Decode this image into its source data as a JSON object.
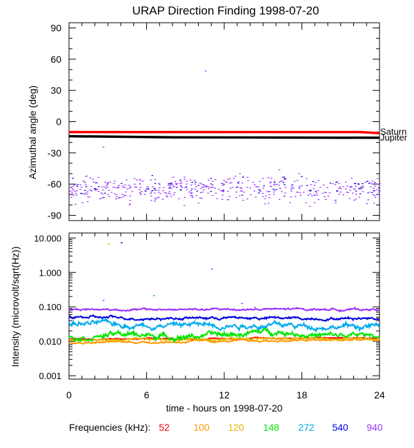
{
  "chart_data": [
    {
      "type": "scatter",
      "title": "URAP Direction Finding  1998-07-20",
      "ylabel": "Azimuthal angle (deg)",
      "ylim": [
        -95,
        95
      ],
      "yticks": [
        90,
        60,
        30,
        0,
        -30,
        -60,
        -90
      ],
      "xlim": [
        0,
        24
      ],
      "reference_lines": [
        {
          "name": "Saturn",
          "color": "#ff0000",
          "x": [
            0,
            22.5,
            24
          ],
          "y": [
            -10,
            -10,
            -11
          ]
        },
        {
          "name": "Jupiter",
          "color": "#000000",
          "x": [
            0,
            7.5,
            24
          ],
          "y": [
            -14,
            -15,
            -15.5
          ]
        }
      ],
      "series": [
        {
          "color": "#9b30ff",
          "trend": {
            "x": [
              0,
              4,
              8,
              12,
              16,
              20,
              24
            ],
            "y": [
              -65,
              -65,
              -64,
              -65,
              -64,
              -66,
              -66
            ]
          },
          "spread": 10,
          "outliers": [
            [
              10.5,
              49
            ],
            [
              2.6,
              -24
            ],
            [
              16.2,
              -46
            ],
            [
              8.0,
              -53
            ]
          ]
        },
        {
          "color": "#0000e0",
          "trend": {
            "x": [
              0,
              6,
              12,
              18,
              24
            ],
            "y": [
              -62,
              -62,
              -62,
              -62,
              -62
            ]
          },
          "spread": 8,
          "outliers": []
        }
      ]
    },
    {
      "type": "line",
      "ylabel": "Intensity (microvolt/sqrt(Hz))",
      "yscale": "log",
      "ylim": [
        0.0008,
        14
      ],
      "yticks": [
        10.0,
        1.0,
        0.1,
        0.01,
        0.001
      ],
      "ytick_labels": [
        "10.000",
        "1.000",
        "0.100",
        "0.010",
        "0.001"
      ],
      "xticks": [
        0,
        6,
        12,
        18,
        24
      ],
      "xlim": [
        0,
        24
      ],
      "xlabel": "time - hours on 1998-07-20",
      "series": [
        {
          "name": "940",
          "color": "#9b30ff",
          "trend": {
            "x": [
              0,
              6,
              12,
              18,
              24
            ],
            "y": [
              0.085,
              0.083,
              0.084,
              0.085,
              0.084
            ]
          },
          "spread": 0.03,
          "outliers": [
            [
              2.6,
              0.16
            ],
            [
              13.3,
              0.13
            ],
            [
              11.0,
              1.3
            ],
            [
              14.3,
              0.1
            ]
          ]
        },
        {
          "name": "540",
          "color": "#0000e0",
          "trend": {
            "x": [
              0,
              6,
              12,
              18,
              24
            ],
            "y": [
              0.05,
              0.047,
              0.048,
              0.046,
              0.048
            ]
          },
          "spread": 0.04,
          "outliers": [
            [
              4.0,
              7.5
            ]
          ]
        },
        {
          "name": "272",
          "color": "#00aaee",
          "trend": {
            "x": [
              0,
              6,
              12,
              18,
              24
            ],
            "y": [
              0.033,
              0.03,
              0.031,
              0.028,
              0.027
            ]
          },
          "spread": 0.08,
          "outliers": [
            [
              6.5,
              0.22
            ]
          ]
        },
        {
          "name": "148",
          "color": "#00e600",
          "trend": {
            "x": [
              0,
              4,
              8,
              12,
              16,
              20,
              24
            ],
            "y": [
              0.013,
              0.016,
              0.014,
              0.015,
              0.02,
              0.014,
              0.015
            ]
          },
          "spread": 0.08,
          "outliers": []
        },
        {
          "name": "120",
          "color": "#e8b400",
          "trend": {
            "x": [
              0,
              6,
              12,
              18,
              24
            ],
            "y": [
              0.011,
              0.011,
              0.012,
              0.012,
              0.012
            ]
          },
          "spread": 0.03,
          "outliers": [
            [
              3.0,
              7.0
            ]
          ]
        },
        {
          "name": "100",
          "color": "#ff9a00",
          "trend": {
            "x": [
              0,
              6,
              12,
              18,
              24
            ],
            "y": [
              0.0095,
              0.0095,
              0.01,
              0.0105,
              0.011
            ]
          },
          "spread": 0.03,
          "outliers": []
        },
        {
          "name": "52",
          "color": "#ff0000",
          "trend": {
            "x": [
              0,
              6,
              12,
              18,
              24
            ],
            "y": [
              0.0115,
              0.0115,
              0.012,
              0.0125,
              0.0125
            ]
          },
          "spread": 0.02,
          "outliers": []
        }
      ]
    }
  ],
  "legend": {
    "label": "Frequencies (kHz):",
    "placement": "bottom",
    "items": [
      "52",
      "100",
      "120",
      "148",
      "272",
      "540",
      "940"
    ]
  }
}
